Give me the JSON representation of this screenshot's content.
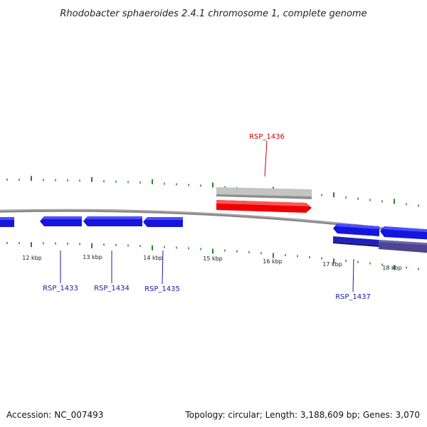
{
  "title": "Rhodobacter sphaeroides 2.4.1 chromosome 1, complete genome",
  "footer": {
    "accession": "Accession: NC_007493",
    "summary": "Topology: circular; Length: 3,188,609 bp; Genes: 3,070"
  },
  "colors": {
    "backbone": "#7a7a7a",
    "ticks": "#1a8a1a",
    "forward_gene": "#ee0000",
    "reverse_gene": "#1515dd",
    "selected_forward": "#b8b8b8",
    "selected_reverse": "#4a3f8f",
    "highlight_label": "#cc0000",
    "gene_label": "#1a1aaa"
  },
  "scale": {
    "unit": "kbp",
    "labels": [
      "12 kbp",
      "13 kbp",
      "14 kbp",
      "15 kbp",
      "16 kbp",
      "17 kbp",
      "18 kbp"
    ]
  },
  "genes": [
    {
      "id": "RSP_1433",
      "strand": "reverse",
      "label": "RSP_1433"
    },
    {
      "id": "RSP_1434",
      "strand": "reverse",
      "label": "RSP_1434"
    },
    {
      "id": "RSP_1435",
      "strand": "reverse",
      "label": "RSP_1435"
    },
    {
      "id": "RSP_1436",
      "strand": "forward",
      "label": "RSP_1436",
      "highlighted": true
    },
    {
      "id": "RSP_1437",
      "strand": "reverse",
      "label": "RSP_1437"
    }
  ]
}
